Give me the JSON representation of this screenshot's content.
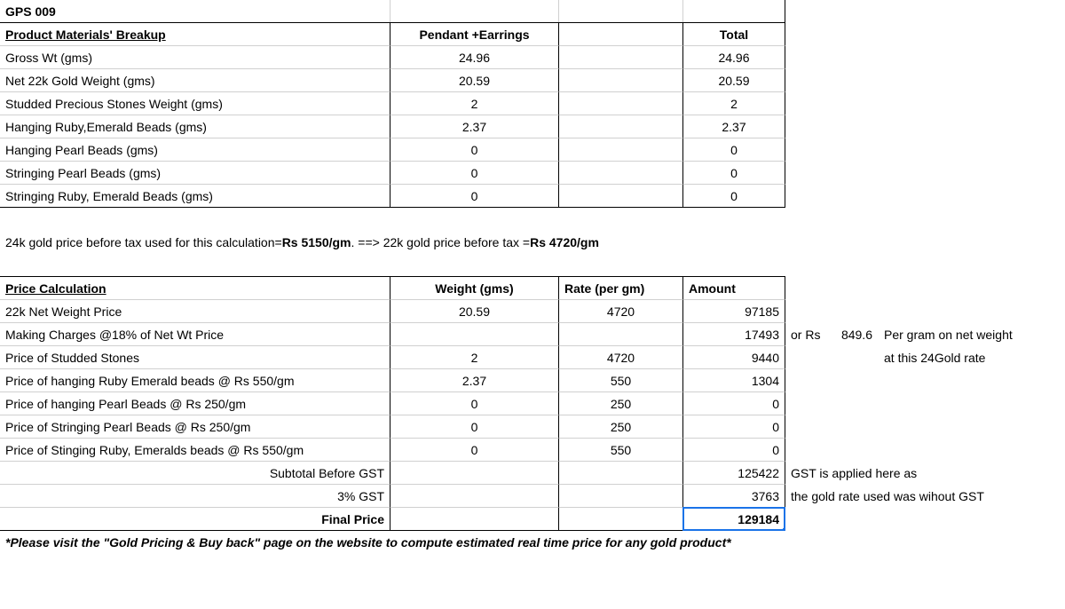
{
  "product_code": "GPS 009",
  "materials": {
    "header_label": "Product Materials' Breakup",
    "col2": "Pendant +Earrings",
    "col_total": "Total",
    "rows": [
      {
        "label": "Gross Wt (gms)",
        "v": "24.96",
        "t": "24.96"
      },
      {
        "label": "Net 22k Gold Weight (gms)",
        "v": "20.59",
        "t": "20.59"
      },
      {
        "label": "Studded Precious Stones Weight (gms)",
        "v": "2",
        "t": "2"
      },
      {
        "label": "Hanging Ruby,Emerald Beads (gms)",
        "v": "2.37",
        "t": "2.37"
      },
      {
        "label": "Hanging Pearl Beads (gms)",
        "v": "0",
        "t": "0"
      },
      {
        "label": "Stringing Pearl Beads (gms)",
        "v": "0",
        "t": "0"
      },
      {
        "label": "Stringing Ruby, Emerald Beads (gms)",
        "v": "0",
        "t": "0"
      }
    ]
  },
  "note": {
    "pre": "24k gold price before tax used for this calculation= ",
    "bold1": "Rs 5150/gm",
    "mid": ". ==> 22k gold price before tax =",
    "bold2": "Rs 4720/gm"
  },
  "price": {
    "header_label": "Price Calculation",
    "weight": "Weight (gms)",
    "rate": "Rate (per gm)",
    "amount": "Amount",
    "rows": [
      {
        "label": "22k Net Weight Price",
        "w": "20.59",
        "r": "4720",
        "a": "97185"
      },
      {
        "label": " Making Charges @18% of Net Wt Price",
        "w": "",
        "r": "",
        "a": "17493"
      },
      {
        "label": "Price of Studded Stones",
        "w": "2",
        "r": "4720",
        "a": "9440"
      },
      {
        "label": "Price of hanging Ruby Emerald beads @ Rs 550/gm",
        "w": "2.37",
        "r": "550",
        "a": "1304"
      },
      {
        "label": "Price of hanging Pearl Beads @ Rs 250/gm",
        "w": "0",
        "r": "250",
        "a": "0"
      },
      {
        "label": "Price of Stringing Pearl Beads @ Rs 250/gm",
        "w": "0",
        "r": "250",
        "a": "0"
      },
      {
        "label": "Price of Stinging Ruby, Emeralds beads @ Rs 550/gm",
        "w": "0",
        "r": "550",
        "a": "0"
      }
    ],
    "subtotal_label": "Subtotal Before GST",
    "subtotal": "125422",
    "gst_label": "3% GST",
    "gst": "3763",
    "final_label": "Final Price",
    "final": "129184",
    "side1a": "or Rs",
    "side1b": "849.6",
    "side1c": "Per gram on net weight",
    "side2c": "at this 24Gold rate",
    "side3": "GST is applied here as",
    "side4": "the gold rate used was wihout GST"
  },
  "footer": "*Please visit the \"Gold Pricing & Buy back\" page on the website to compute estimated real time price for any gold product*",
  "colors": {
    "grid": "#d0d0d0",
    "border": "#000000",
    "select": "#1a73e8"
  }
}
